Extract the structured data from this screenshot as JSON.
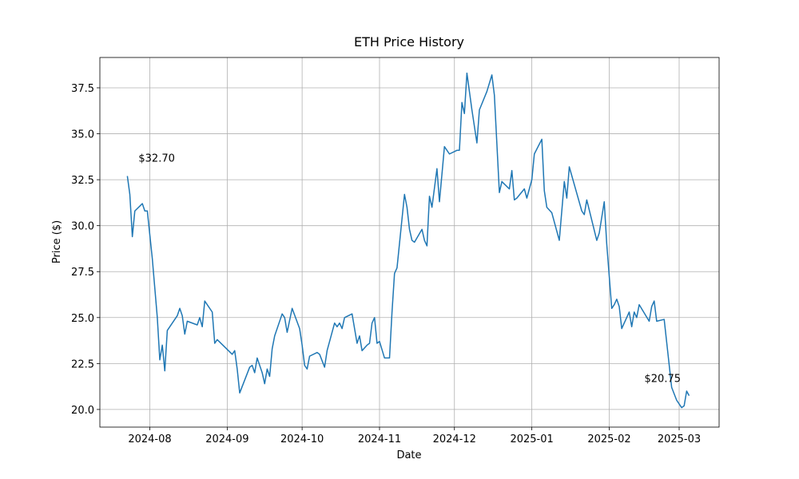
{
  "chart_data": {
    "type": "line",
    "title": "ETH Price History",
    "x_label": "Date",
    "y_label": "Price ($)",
    "color": "#1f77b4",
    "grid": true,
    "x": [
      "2024-07-23",
      "2024-07-24",
      "2024-07-25",
      "2024-07-26",
      "2024-07-29",
      "2024-07-30",
      "2024-07-31",
      "2024-08-02",
      "2024-08-04",
      "2024-08-05",
      "2024-08-06",
      "2024-08-07",
      "2024-08-08",
      "2024-08-12",
      "2024-08-13",
      "2024-08-14",
      "2024-08-15",
      "2024-08-16",
      "2024-08-20",
      "2024-08-21",
      "2024-08-22",
      "2024-08-23",
      "2024-08-26",
      "2024-08-27",
      "2024-08-28",
      "2024-09-03",
      "2024-09-04",
      "2024-09-05",
      "2024-09-06",
      "2024-09-08",
      "2024-09-10",
      "2024-09-11",
      "2024-09-12",
      "2024-09-13",
      "2024-09-15",
      "2024-09-16",
      "2024-09-17",
      "2024-09-18",
      "2024-09-19",
      "2024-09-20",
      "2024-09-23",
      "2024-09-24",
      "2024-09-25",
      "2024-09-27",
      "2024-09-30",
      "2024-10-01",
      "2024-10-02",
      "2024-10-03",
      "2024-10-04",
      "2024-10-07",
      "2024-10-08",
      "2024-10-10",
      "2024-10-11",
      "2024-10-14",
      "2024-10-15",
      "2024-10-16",
      "2024-10-17",
      "2024-10-18",
      "2024-10-21",
      "2024-10-23",
      "2024-10-24",
      "2024-10-25",
      "2024-10-27",
      "2024-10-28",
      "2024-10-29",
      "2024-10-30",
      "2024-10-31",
      "2024-11-01",
      "2024-11-03",
      "2024-11-05",
      "2024-11-06",
      "2024-11-07",
      "2024-11-08",
      "2024-11-11",
      "2024-11-12",
      "2024-11-13",
      "2024-11-14",
      "2024-11-15",
      "2024-11-18",
      "2024-11-19",
      "2024-11-20",
      "2024-11-21",
      "2024-11-22",
      "2024-11-24",
      "2024-11-25",
      "2024-11-27",
      "2024-11-29",
      "2024-12-02",
      "2024-12-03",
      "2024-12-04",
      "2024-12-05",
      "2024-12-06",
      "2024-12-08",
      "2024-12-10",
      "2024-12-11",
      "2024-12-14",
      "2024-12-16",
      "2024-12-17",
      "2024-12-19",
      "2024-12-20",
      "2024-12-23",
      "2024-12-24",
      "2024-12-25",
      "2024-12-26",
      "2024-12-29",
      "2024-12-30",
      "2025-01-01",
      "2025-01-02",
      "2025-01-05",
      "2025-01-06",
      "2025-01-07",
      "2025-01-09",
      "2025-01-12",
      "2025-01-14",
      "2025-01-15",
      "2025-01-16",
      "2025-01-21",
      "2025-01-22",
      "2025-01-23",
      "2025-01-27",
      "2025-01-28",
      "2025-01-30",
      "2025-01-31",
      "2025-02-02",
      "2025-02-03",
      "2025-02-04",
      "2025-02-05",
      "2025-02-06",
      "2025-02-09",
      "2025-02-10",
      "2025-02-11",
      "2025-02-12",
      "2025-02-13",
      "2025-02-17",
      "2025-02-18",
      "2025-02-19",
      "2025-02-20",
      "2025-02-23",
      "2025-02-26",
      "2025-02-28",
      "2025-03-02",
      "2025-03-03",
      "2025-03-04",
      "2025-03-05"
    ],
    "values": [
      32.7,
      31.7,
      29.4,
      30.8,
      31.2,
      30.8,
      30.8,
      28.2,
      25.0,
      22.7,
      23.5,
      22.1,
      24.3,
      25.1,
      25.5,
      25.1,
      24.1,
      24.8,
      24.6,
      25.0,
      24.5,
      25.9,
      25.3,
      23.6,
      23.8,
      23.0,
      23.2,
      22.2,
      20.9,
      21.6,
      22.3,
      22.4,
      22.0,
      22.8,
      22.0,
      21.4,
      22.2,
      21.8,
      23.3,
      24.0,
      25.2,
      25.0,
      24.2,
      25.5,
      24.4,
      23.5,
      22.4,
      22.2,
      22.9,
      23.1,
      23.0,
      22.3,
      23.2,
      24.7,
      24.5,
      24.7,
      24.4,
      25.0,
      25.2,
      23.6,
      24.0,
      23.2,
      23.5,
      23.6,
      24.7,
      25.0,
      23.6,
      23.7,
      22.8,
      22.8,
      25.3,
      27.4,
      27.7,
      31.7,
      31.0,
      29.8,
      29.2,
      29.1,
      29.8,
      29.2,
      28.9,
      31.6,
      31.0,
      33.1,
      31.3,
      34.3,
      33.9,
      34.1,
      34.1,
      36.7,
      36.1,
      38.3,
      36.3,
      34.5,
      36.3,
      37.3,
      38.2,
      37.1,
      31.8,
      32.4,
      32.0,
      33.0,
      31.4,
      31.5,
      32.0,
      31.5,
      32.5,
      33.9,
      34.7,
      31.9,
      31.0,
      30.7,
      29.2,
      32.4,
      31.5,
      33.2,
      30.8,
      30.6,
      31.4,
      29.2,
      29.6,
      31.3,
      29.0,
      25.5,
      25.7,
      26.0,
      25.6,
      24.4,
      25.3,
      24.5,
      25.3,
      25.0,
      25.7,
      24.8,
      25.6,
      25.9,
      24.8,
      24.9,
      21.2,
      20.5,
      20.1,
      20.2,
      21.0,
      20.75
    ],
    "annotations": [
      "$32.70",
      "$20.75"
    ],
    "xlim": [
      "2024-07-12",
      "2025-03-17"
    ],
    "xticks": [
      "2024-08",
      "2024-09",
      "2024-10",
      "2024-11",
      "2024-12",
      "2025-01",
      "2025-02",
      "2025-03"
    ],
    "ylim": [
      19.04,
      39.15
    ],
    "yticks": [
      {
        "value": 20,
        "label": "20.0"
      },
      {
        "value": 22.5,
        "label": "22.5"
      },
      {
        "value": 25,
        "label": "25.0"
      },
      {
        "value": 27.5,
        "label": "27.5"
      },
      {
        "value": 30,
        "label": "30.0"
      },
      {
        "value": 32.5,
        "label": "32.5"
      },
      {
        "value": 35,
        "label": "35.0"
      },
      {
        "value": 37.5,
        "label": "37.5"
      }
    ]
  }
}
